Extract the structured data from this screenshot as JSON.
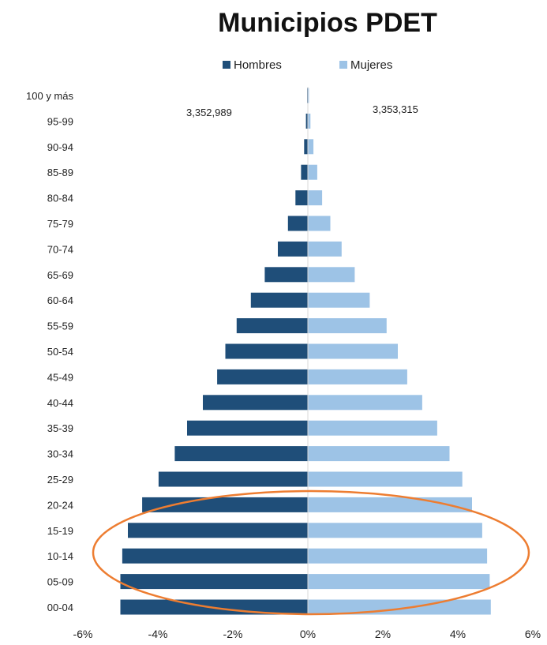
{
  "chart_data": {
    "type": "bar",
    "orientation": "horizontal",
    "title": "Municipios PDET",
    "categories": [
      "100 y más",
      "95-99",
      "90-94",
      "85-89",
      "80-84",
      "75-79",
      "70-74",
      "65-69",
      "60-64",
      "55-59",
      "50-54",
      "45-49",
      "40-44",
      "35-39",
      "30-34",
      "25-29",
      "20-24",
      "15-19",
      "10-14",
      "05-09",
      "00-04"
    ],
    "series": [
      {
        "name": "Hombres",
        "color": "#1f4e79",
        "values": [
          -0.02,
          -0.05,
          -0.1,
          -0.18,
          -0.33,
          -0.53,
          -0.8,
          -1.15,
          -1.52,
          -1.9,
          -2.2,
          -2.42,
          -2.8,
          -3.22,
          -3.55,
          -3.98,
          -4.42,
          -4.8,
          -4.95,
          -5.0,
          -5.0
        ]
      },
      {
        "name": "Mujeres",
        "color": "#9dc3e6",
        "values": [
          0.03,
          0.07,
          0.15,
          0.25,
          0.38,
          0.6,
          0.9,
          1.25,
          1.65,
          2.1,
          2.4,
          2.65,
          3.05,
          3.45,
          3.78,
          4.12,
          4.38,
          4.65,
          4.78,
          4.85,
          4.88
        ]
      }
    ],
    "xlim": [
      -6,
      6
    ],
    "xticks": [
      "-6%",
      "-4%",
      "-2%",
      "0%",
      "2%",
      "4%",
      "6%"
    ],
    "annotations": {
      "hombres_total": "3,352,989",
      "mujeres_total": "3,353,315"
    },
    "highlight": {
      "shape": "ellipse",
      "color": "#ed7d31",
      "categories": [
        "20-24",
        "15-19",
        "10-14",
        "05-09",
        "00-04"
      ]
    },
    "legend_position": "top-center",
    "grid": false
  }
}
